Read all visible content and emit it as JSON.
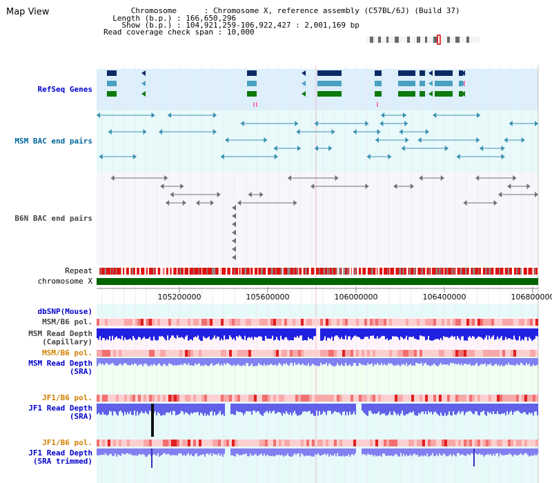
{
  "page_title": "Map View",
  "info": {
    "chromosome_key": "Chromosome",
    "chromosome_val": "Chromosome X, reference assembly (C57BL/6J) (Build 37)",
    "length_key": "Length (b.p.)",
    "length_val": "166,650,296",
    "show_key": "Show (b.p.)",
    "show_val": "104,921,259-106,922,427 : 2,001,169 bp",
    "coverage_key": "Read coverage check span",
    "coverage_val": "10,000"
  },
  "tracks": {
    "refseq": "RefSeq Genes",
    "msm_bac": "MSM BAC end pairs",
    "b6n_bac": "B6N BAC end pairs",
    "repeat": "Repeat",
    "chromosome": "chromosome X",
    "dbsnp": "dbSNP(Mouse)",
    "msm_pol_1": "MSM/B6 pol.",
    "msm_depth_cap_1": "MSM Read Depth",
    "msm_depth_cap_2": "(Capillary)",
    "msm_pol_2": "MSM/B6 pol.",
    "msm_depth_sra_1": "MSM Read Depth",
    "msm_depth_sra_2": "(SRA)",
    "jf1_pol_1": "JF1/B6 pol.",
    "jf1_depth_1": "JF1 Read Depth",
    "jf1_depth_2": "(SRA)",
    "jf1_pol_2": "JF1/B6 pol.",
    "jf1_trim_1": "JF1 Read Depth",
    "jf1_trim_2": "(SRA trimmed)"
  },
  "axis_ticks": [
    "105200000",
    "105600000",
    "106000000",
    "106400000",
    "106800000"
  ],
  "colors": {
    "refseq_bg": "#dceffa",
    "msm_bg": "#e8fafa",
    "b6n_bg": "#f6f6fc",
    "lower_bg": "#e6fafa",
    "gene_navy": "#0a2a66",
    "gene_teal": "#4aa0c0",
    "gene_green": "#0c7a0c",
    "chrom_green": "#006400",
    "repeat_red": "#e01010",
    "depth_blue": "#2020e0",
    "depth_lavender": "#8080f0",
    "label_blue": "#0000cc",
    "label_teal": "#006699",
    "label_orange": "#d08000",
    "label_gray": "#444444"
  }
}
